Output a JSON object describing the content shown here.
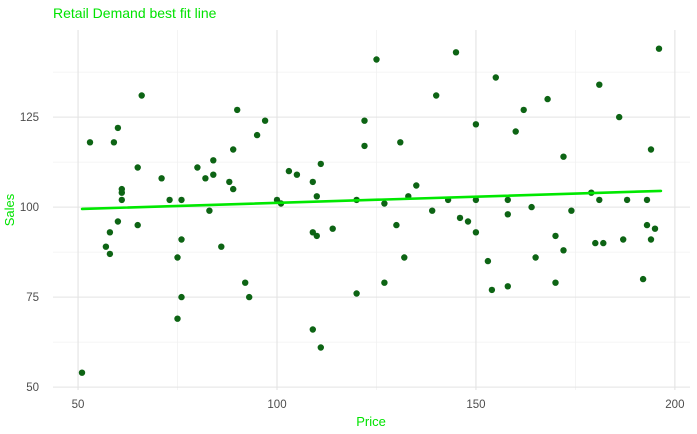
{
  "figure": {
    "title": "Retail Demand best fit line",
    "x_axis_label": "Price",
    "y_axis_label": "Sales"
  },
  "colors": {
    "accent_green": "#00e300",
    "line_green": "#00e800",
    "point_green": "#0d6414",
    "grid_major": "#e3e3e3",
    "grid_minor": "#f1f1f1",
    "tick_label": "#4d4d4d",
    "background": "#ffffff"
  },
  "chart_data": {
    "type": "scatter",
    "title": "Retail Demand best fit line",
    "xlabel": "Price",
    "ylabel": "Sales",
    "x_ticks": [
      50,
      100,
      150,
      200
    ],
    "y_ticks": [
      50,
      75,
      100,
      125
    ],
    "x_minor_ticks": [
      75,
      125,
      175
    ],
    "y_minor_ticks": [
      62.5,
      87.5,
      112.5,
      137.5
    ],
    "xlim": [
      43.7,
      203.8
    ],
    "ylim": [
      49.2,
      149.2
    ],
    "grid": true,
    "legend_position": "none",
    "points": [
      [
        66,
        131
      ],
      [
        90,
        127
      ],
      [
        95,
        120
      ],
      [
        60,
        122
      ],
      [
        53,
        118
      ],
      [
        59,
        118
      ],
      [
        89,
        116
      ],
      [
        65,
        111
      ],
      [
        84,
        113
      ],
      [
        80,
        111
      ],
      [
        82,
        108
      ],
      [
        84,
        109
      ],
      [
        71,
        108
      ],
      [
        88,
        107
      ],
      [
        89,
        105
      ],
      [
        61,
        105
      ],
      [
        61,
        104
      ],
      [
        61,
        102
      ],
      [
        73,
        102
      ],
      [
        76,
        102
      ],
      [
        60,
        96
      ],
      [
        65,
        95
      ],
      [
        58,
        93
      ],
      [
        57,
        89
      ],
      [
        58,
        87
      ],
      [
        76,
        91
      ],
      [
        75,
        86
      ],
      [
        86,
        89
      ],
      [
        83,
        99
      ],
      [
        92,
        79
      ],
      [
        93,
        75
      ],
      [
        76,
        75
      ],
      [
        75,
        69
      ],
      [
        51,
        54
      ],
      [
        125,
        141
      ],
      [
        145,
        143
      ],
      [
        140,
        131
      ],
      [
        97,
        124
      ],
      [
        122,
        124
      ],
      [
        150,
        123
      ],
      [
        122,
        117
      ],
      [
        131,
        118
      ],
      [
        111,
        112
      ],
      [
        103,
        110
      ],
      [
        105,
        109
      ],
      [
        109,
        107
      ],
      [
        135,
        106
      ],
      [
        133,
        103
      ],
      [
        110,
        103
      ],
      [
        100,
        102
      ],
      [
        120,
        102
      ],
      [
        127,
        101
      ],
      [
        143,
        102
      ],
      [
        101,
        101
      ],
      [
        196,
        144
      ],
      [
        155,
        136
      ],
      [
        181,
        134
      ],
      [
        168,
        130
      ],
      [
        162,
        127
      ],
      [
        186,
        125
      ],
      [
        160,
        121
      ],
      [
        172,
        114
      ],
      [
        194,
        116
      ],
      [
        179,
        104
      ],
      [
        181,
        102
      ],
      [
        188,
        102
      ],
      [
        193,
        102
      ],
      [
        158,
        102
      ],
      [
        150,
        102
      ],
      [
        164,
        100
      ],
      [
        139,
        99
      ],
      [
        146,
        97
      ],
      [
        148,
        96
      ],
      [
        150,
        93
      ],
      [
        130,
        95
      ],
      [
        114,
        94
      ],
      [
        109,
        93
      ],
      [
        110,
        92
      ],
      [
        132,
        86
      ],
      [
        127,
        79
      ],
      [
        120,
        76
      ],
      [
        109,
        66
      ],
      [
        111,
        61
      ],
      [
        158,
        98
      ],
      [
        174,
        99
      ],
      [
        170,
        92
      ],
      [
        193,
        95
      ],
      [
        195,
        94
      ],
      [
        194,
        91
      ],
      [
        180,
        90
      ],
      [
        182,
        90
      ],
      [
        187,
        91
      ],
      [
        172,
        88
      ],
      [
        165,
        86
      ],
      [
        153,
        85
      ],
      [
        170,
        79
      ],
      [
        192,
        80
      ],
      [
        158,
        78
      ],
      [
        154,
        77
      ]
    ],
    "fit_line": {
      "x1": 51,
      "y1": 99.5,
      "x2": 196.5,
      "y2": 104.5
    }
  }
}
